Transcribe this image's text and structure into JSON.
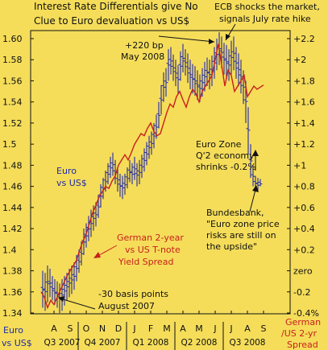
{
  "chart_data": {
    "type": "line",
    "title": "Interest Rate Differentials give No Clue to Euro devaluation vs US$",
    "title_lines": [
      "Interest Rate Differentials give No",
      "Clue to Euro devaluation vs US$"
    ],
    "left_axis": {
      "label_lines": [
        "Euro",
        "vs US$"
      ],
      "range": [
        1.34,
        1.62
      ],
      "ticks": [
        "1.60",
        "1.58",
        "1.56",
        "1.54",
        "1.52",
        "1.5",
        "1.48",
        "1.46",
        "1.44",
        "1.42",
        "1.4",
        "1.38",
        "1.36",
        "1.34"
      ],
      "tick_values": [
        1.6,
        1.58,
        1.56,
        1.54,
        1.52,
        1.5,
        1.48,
        1.46,
        1.44,
        1.42,
        1.4,
        1.38,
        1.36,
        1.34
      ]
    },
    "right_axis": {
      "label_lines": [
        "German",
        "/US 2-yr",
        "Spread"
      ],
      "range": [
        -0.4,
        2.4
      ],
      "ticks": [
        "+2.2",
        "+2",
        "+1.8",
        "+1.6",
        "+1.4",
        "+1.2",
        "+1",
        "+0.8",
        "+0.6",
        "+0.4",
        "+0.2",
        "zero",
        "-0.2",
        "-0.4%"
      ],
      "tick_values": [
        2.2,
        2.0,
        1.8,
        1.6,
        1.4,
        1.2,
        1.0,
        0.8,
        0.6,
        0.4,
        0.2,
        0.0,
        -0.2,
        -0.4
      ]
    },
    "x_axis": {
      "months": [
        "A",
        "S",
        "O",
        "N",
        "D",
        "J",
        "F",
        "M",
        "A",
        "M",
        "J",
        "J",
        "A",
        "S"
      ],
      "month_index": [
        0,
        1,
        2,
        3,
        4,
        5,
        6,
        7,
        8,
        9,
        10,
        11,
        12,
        13
      ],
      "quarters": [
        {
          "label": "Q3 2007",
          "start": -0.5,
          "end": 1.5
        },
        {
          "label": "Q4 2007",
          "start": 1.5,
          "end": 4.5
        },
        {
          "label": "Q1 2008",
          "start": 4.5,
          "end": 7.5
        },
        {
          "label": "Q2 2008",
          "start": 7.5,
          "end": 10.5
        },
        {
          "label": "Q3 2008",
          "start": 10.5,
          "end": 13.5
        }
      ]
    },
    "corner_label_lines": [
      "Euro",
      "vs US$"
    ],
    "series": [
      {
        "name": "Euro vs US$",
        "axis": "left",
        "style": "high-low bars",
        "color": "#1f2aa8",
        "x": [
          -0.7,
          -0.55,
          -0.4,
          -0.25,
          -0.1,
          0.05,
          0.2,
          0.35,
          0.5,
          0.65,
          0.8,
          0.95,
          1.1,
          1.25,
          1.4,
          1.55,
          1.7,
          1.85,
          2.0,
          2.15,
          2.3,
          2.45,
          2.6,
          2.75,
          2.9,
          3.05,
          3.2,
          3.35,
          3.5,
          3.65,
          3.8,
          3.95,
          4.1,
          4.25,
          4.4,
          4.55,
          4.7,
          4.85,
          5.0,
          5.15,
          5.3,
          5.45,
          5.6,
          5.75,
          5.9,
          6.05,
          6.2,
          6.35,
          6.5,
          6.65,
          6.8,
          6.95,
          7.1,
          7.25,
          7.4,
          7.55,
          7.7,
          7.85,
          8.0,
          8.15,
          8.3,
          8.45,
          8.6,
          8.75,
          8.9,
          9.05,
          9.2,
          9.35,
          9.5,
          9.65,
          9.8,
          9.95,
          10.1,
          10.25,
          10.4,
          10.55,
          10.7,
          10.85,
          11.0,
          11.15,
          11.3,
          11.45,
          11.6,
          11.75,
          11.9,
          12.05,
          12.2,
          12.35,
          12.5,
          12.65,
          12.8
        ],
        "high": [
          1.38,
          1.378,
          1.385,
          1.382,
          1.375,
          1.372,
          1.37,
          1.368,
          1.372,
          1.375,
          1.378,
          1.382,
          1.385,
          1.388,
          1.395,
          1.4,
          1.408,
          1.42,
          1.425,
          1.432,
          1.438,
          1.442,
          1.445,
          1.452,
          1.462,
          1.468,
          1.475,
          1.482,
          1.488,
          1.492,
          1.485,
          1.478,
          1.472,
          1.47,
          1.472,
          1.478,
          1.485,
          1.482,
          1.488,
          1.482,
          1.485,
          1.49,
          1.496,
          1.502,
          1.508,
          1.512,
          1.52,
          1.528,
          1.54,
          1.556,
          1.568,
          1.572,
          1.59,
          1.592,
          1.585,
          1.58,
          1.575,
          1.588,
          1.595,
          1.59,
          1.586,
          1.58,
          1.576,
          1.574,
          1.57,
          1.566,
          1.572,
          1.578,
          1.582,
          1.58,
          1.584,
          1.592,
          1.6,
          1.606,
          1.602,
          1.596,
          1.594,
          1.59,
          1.598,
          1.602,
          1.592,
          1.586,
          1.58,
          1.57,
          1.56,
          1.535,
          1.5,
          1.48,
          1.47,
          1.468,
          1.467
        ],
        "low": [
          1.345,
          1.342,
          1.35,
          1.355,
          1.352,
          1.348,
          1.345,
          1.34,
          1.342,
          1.347,
          1.352,
          1.355,
          1.358,
          1.362,
          1.37,
          1.378,
          1.385,
          1.395,
          1.402,
          1.408,
          1.412,
          1.418,
          1.422,
          1.43,
          1.44,
          1.448,
          1.455,
          1.462,
          1.468,
          1.47,
          1.462,
          1.455,
          1.45,
          1.448,
          1.452,
          1.458,
          1.464,
          1.462,
          1.466,
          1.46,
          1.462,
          1.468,
          1.474,
          1.48,
          1.486,
          1.49,
          1.496,
          1.505,
          1.515,
          1.528,
          1.54,
          1.545,
          1.56,
          1.566,
          1.56,
          1.555,
          1.548,
          1.56,
          1.568,
          1.565,
          1.558,
          1.552,
          1.548,
          1.546,
          1.542,
          1.54,
          1.545,
          1.55,
          1.555,
          1.552,
          1.555,
          1.562,
          1.57,
          1.575,
          1.572,
          1.566,
          1.562,
          1.56,
          1.566,
          1.57,
          1.562,
          1.555,
          1.548,
          1.538,
          1.52,
          1.49,
          1.468,
          1.46,
          1.458,
          1.456,
          1.46
        ]
      },
      {
        "name": "German 2-year vs US T-note Yield Spread",
        "axis": "right",
        "style": "line",
        "color": "#c8201c",
        "x": [
          -0.8,
          -0.6,
          -0.4,
          -0.2,
          0.0,
          0.2,
          0.4,
          0.6,
          0.8,
          1.0,
          1.2,
          1.4,
          1.6,
          1.8,
          2.0,
          2.2,
          2.4,
          2.6,
          2.8,
          3.0,
          3.2,
          3.4,
          3.6,
          3.8,
          4.0,
          4.2,
          4.4,
          4.6,
          4.8,
          5.0,
          5.2,
          5.4,
          5.6,
          5.8,
          6.0,
          6.2,
          6.4,
          6.6,
          6.8,
          7.0,
          7.2,
          7.4,
          7.6,
          7.8,
          8.0,
          8.2,
          8.4,
          8.6,
          8.8,
          9.0,
          9.2,
          9.4,
          9.6,
          9.8,
          10.0,
          10.2,
          10.4,
          10.6,
          10.8,
          11.0,
          11.2,
          11.4,
          11.6,
          11.8,
          12.0,
          12.2,
          12.4,
          12.6,
          12.8,
          13.0
        ],
        "y": [
          -0.2,
          -0.25,
          -0.35,
          -0.28,
          -0.32,
          -0.25,
          -0.18,
          -0.12,
          -0.05,
          0.0,
          0.05,
          0.1,
          0.2,
          0.28,
          0.35,
          0.45,
          0.55,
          0.62,
          0.7,
          0.75,
          0.8,
          0.78,
          0.85,
          0.9,
          1.0,
          1.05,
          1.1,
          1.05,
          1.12,
          1.2,
          1.25,
          1.3,
          1.28,
          1.35,
          1.4,
          1.32,
          1.28,
          1.3,
          1.4,
          1.5,
          1.58,
          1.55,
          1.65,
          1.7,
          1.62,
          1.55,
          1.65,
          1.72,
          1.68,
          1.6,
          1.7,
          1.75,
          1.8,
          1.85,
          2.0,
          2.15,
          1.95,
          1.75,
          1.9,
          1.85,
          1.7,
          1.75,
          1.8,
          1.85,
          1.65,
          1.7,
          1.75,
          1.72,
          1.74,
          1.76
        ]
      }
    ],
    "annotations": [
      {
        "lines": [
          "+220 bp",
          "May 2008"
        ]
      },
      {
        "lines": [
          "ECB shocks the market,",
          "signals July rate hike"
        ]
      },
      {
        "lines": [
          "Euro Zone",
          "Q'2 economy",
          "shrinks -0.2%"
        ]
      },
      {
        "lines": [
          "Bundesbank,",
          "\"Euro zone price",
          "risks are still on",
          "the upside\""
        ]
      },
      {
        "lines": [
          "German 2-year",
          "vs US T-note",
          "Yield Spread"
        ]
      },
      {
        "lines": [
          "-30 basis points",
          "August 2007"
        ]
      }
    ],
    "colors": {
      "background": "#f5dd5a",
      "euro": "#1f2aa8",
      "spread": "#c8201c",
      "text": "#111111"
    },
    "grid": false
  }
}
